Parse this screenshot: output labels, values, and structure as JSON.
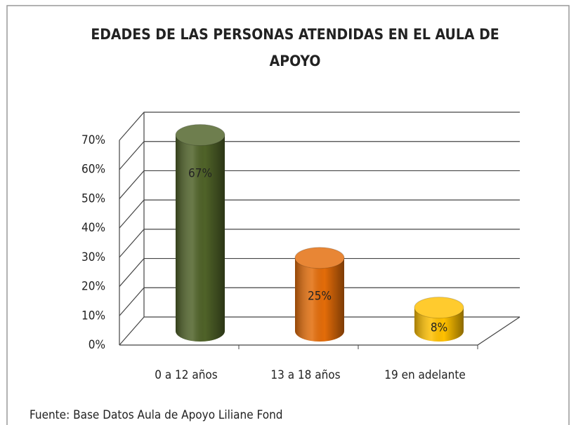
{
  "chart_data": {
    "type": "bar3d",
    "title": "EDADES DE LAS PERSONAS ATENDIDAS EN EL AULA DE APOYO",
    "categories": [
      "0 a 12 años",
      "13 a 18 años",
      "19 en adelante"
    ],
    "values": [
      67,
      25,
      8
    ],
    "value_labels": [
      "67%",
      "25%",
      "8%"
    ],
    "colors": [
      "#4f6228",
      "#e36c09",
      "#ffc000"
    ],
    "ylim": [
      0,
      70
    ],
    "yticks": [
      {
        "value": 0,
        "label": "0%"
      },
      {
        "value": 10,
        "label": "10%"
      },
      {
        "value": 20,
        "label": "20%"
      },
      {
        "value": 30,
        "label": "30%"
      },
      {
        "value": 40,
        "label": "40%"
      },
      {
        "value": 50,
        "label": "50%"
      },
      {
        "value": 60,
        "label": "60%"
      },
      {
        "value": 70,
        "label": "70%"
      }
    ],
    "grid": true,
    "source": "Fuente: Base Datos Aula de Apoyo Liliane Fond"
  }
}
